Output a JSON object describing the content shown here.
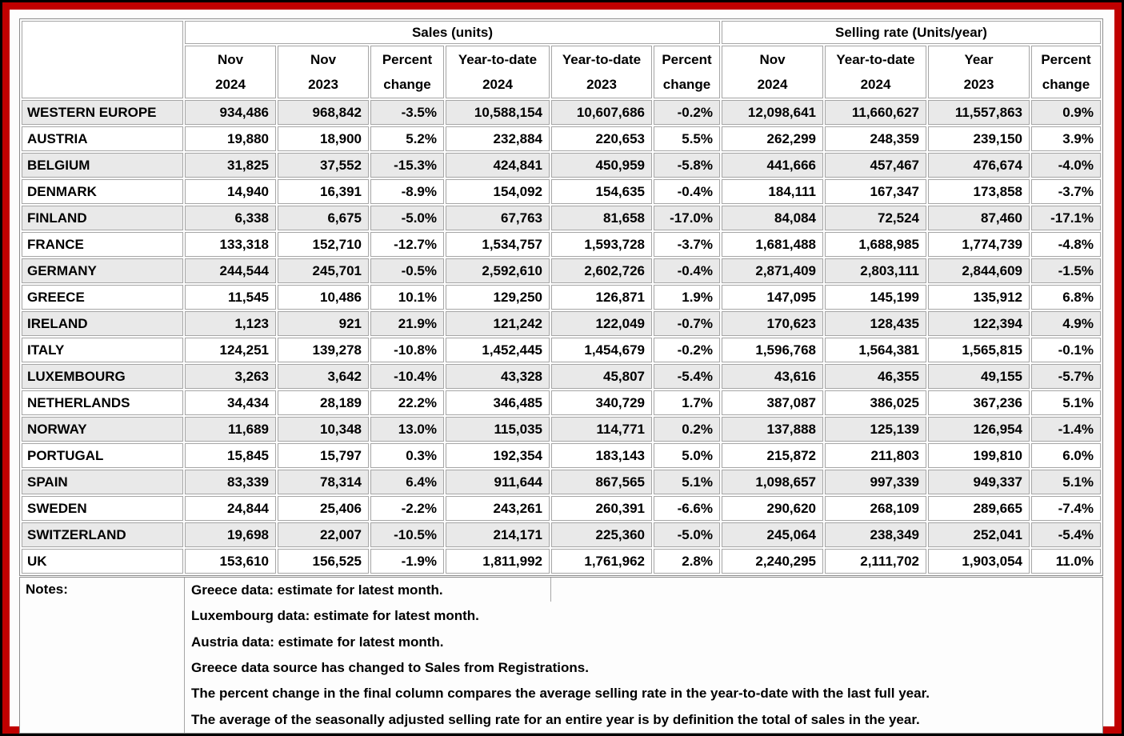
{
  "frame": {
    "outer_border_color": "#000000",
    "accent_border_color": "#c00000"
  },
  "table": {
    "group_headers": [
      {
        "label": "Sales (units)",
        "colspan": 6
      },
      {
        "label": "Selling rate (Units/year)",
        "colspan": 4
      }
    ],
    "columns": [
      {
        "line1": "Nov",
        "line2": "2024"
      },
      {
        "line1": "Nov",
        "line2": "2023"
      },
      {
        "line1": "Percent",
        "line2": "change"
      },
      {
        "line1": "Year-to-date",
        "line2": "2024"
      },
      {
        "line1": "Year-to-date",
        "line2": "2023"
      },
      {
        "line1": "Percent",
        "line2": "change"
      },
      {
        "line1": "Nov",
        "line2": "2024"
      },
      {
        "line1": "Year-to-date",
        "line2": "2024"
      },
      {
        "line1": "Year",
        "line2": "2023"
      },
      {
        "line1": "Percent",
        "line2": "change"
      }
    ],
    "rows": [
      {
        "country": "WESTERN EUROPE",
        "values": [
          "934,486",
          "968,842",
          "-3.5%",
          "10,588,154",
          "10,607,686",
          "-0.2%",
          "12,098,641",
          "11,660,627",
          "11,557,863",
          "0.9%"
        ]
      },
      {
        "country": "AUSTRIA",
        "values": [
          "19,880",
          "18,900",
          "5.2%",
          "232,884",
          "220,653",
          "5.5%",
          "262,299",
          "248,359",
          "239,150",
          "3.9%"
        ]
      },
      {
        "country": "BELGIUM",
        "values": [
          "31,825",
          "37,552",
          "-15.3%",
          "424,841",
          "450,959",
          "-5.8%",
          "441,666",
          "457,467",
          "476,674",
          "-4.0%"
        ]
      },
      {
        "country": "DENMARK",
        "values": [
          "14,940",
          "16,391",
          "-8.9%",
          "154,092",
          "154,635",
          "-0.4%",
          "184,111",
          "167,347",
          "173,858",
          "-3.7%"
        ]
      },
      {
        "country": "FINLAND",
        "values": [
          "6,338",
          "6,675",
          "-5.0%",
          "67,763",
          "81,658",
          "-17.0%",
          "84,084",
          "72,524",
          "87,460",
          "-17.1%"
        ]
      },
      {
        "country": "FRANCE",
        "values": [
          "133,318",
          "152,710",
          "-12.7%",
          "1,534,757",
          "1,593,728",
          "-3.7%",
          "1,681,488",
          "1,688,985",
          "1,774,739",
          "-4.8%"
        ]
      },
      {
        "country": "GERMANY",
        "values": [
          "244,544",
          "245,701",
          "-0.5%",
          "2,592,610",
          "2,602,726",
          "-0.4%",
          "2,871,409",
          "2,803,111",
          "2,844,609",
          "-1.5%"
        ]
      },
      {
        "country": "GREECE",
        "values": [
          "11,545",
          "10,486",
          "10.1%",
          "129,250",
          "126,871",
          "1.9%",
          "147,095",
          "145,199",
          "135,912",
          "6.8%"
        ]
      },
      {
        "country": "IRELAND",
        "values": [
          "1,123",
          "921",
          "21.9%",
          "121,242",
          "122,049",
          "-0.7%",
          "170,623",
          "128,435",
          "122,394",
          "4.9%"
        ]
      },
      {
        "country": "ITALY",
        "values": [
          "124,251",
          "139,278",
          "-10.8%",
          "1,452,445",
          "1,454,679",
          "-0.2%",
          "1,596,768",
          "1,564,381",
          "1,565,815",
          "-0.1%"
        ]
      },
      {
        "country": "LUXEMBOURG",
        "values": [
          "3,263",
          "3,642",
          "-10.4%",
          "43,328",
          "45,807",
          "-5.4%",
          "43,616",
          "46,355",
          "49,155",
          "-5.7%"
        ]
      },
      {
        "country": "NETHERLANDS",
        "values": [
          "34,434",
          "28,189",
          "22.2%",
          "346,485",
          "340,729",
          "1.7%",
          "387,087",
          "386,025",
          "367,236",
          "5.1%"
        ]
      },
      {
        "country": "NORWAY",
        "values": [
          "11,689",
          "10,348",
          "13.0%",
          "115,035",
          "114,771",
          "0.2%",
          "137,888",
          "125,139",
          "126,954",
          "-1.4%"
        ]
      },
      {
        "country": "PORTUGAL",
        "values": [
          "15,845",
          "15,797",
          "0.3%",
          "192,354",
          "183,143",
          "5.0%",
          "215,872",
          "211,803",
          "199,810",
          "6.0%"
        ]
      },
      {
        "country": "SPAIN",
        "values": [
          "83,339",
          "78,314",
          "6.4%",
          "911,644",
          "867,565",
          "5.1%",
          "1,098,657",
          "997,339",
          "949,337",
          "5.1%"
        ]
      },
      {
        "country": "SWEDEN",
        "values": [
          "24,844",
          "25,406",
          "-2.2%",
          "243,261",
          "260,391",
          "-6.6%",
          "290,620",
          "268,109",
          "289,665",
          "-7.4%"
        ]
      },
      {
        "country": "SWITZERLAND",
        "values": [
          "19,698",
          "22,007",
          "-10.5%",
          "214,171",
          "225,360",
          "-5.0%",
          "245,064",
          "238,349",
          "252,041",
          "-5.4%"
        ]
      },
      {
        "country": "UK",
        "values": [
          "153,610",
          "156,525",
          "-1.9%",
          "1,811,992",
          "1,761,962",
          "2.8%",
          "2,240,295",
          "2,111,702",
          "1,903,054",
          "11.0%"
        ]
      }
    ]
  },
  "notes": {
    "label": "Notes:",
    "lines": [
      "Greece data: estimate for latest month.",
      "Luxembourg data: estimate for latest month.",
      "Austria data: estimate for latest month.",
      "Greece data source has changed to Sales from Registrations.",
      "The percent change in the final column compares the average selling rate in the year-to-date with the last full year.",
      "The average of the seasonally adjusted selling rate for an entire year is by definition the total of sales in the year."
    ]
  }
}
